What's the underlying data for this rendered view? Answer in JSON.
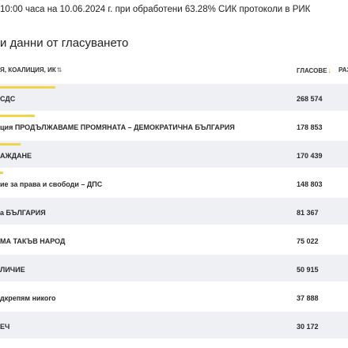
{
  "status_line": "10:00 часа на 10.06.2024 г. при обработени 63.28% СИК протоколи в РИК",
  "section_title": "и данни от гласуването",
  "table": {
    "headers": {
      "name": "я, коалиция, ИК",
      "name_sort_icon": "sort-arrows-icon",
      "votes": "ГЛАСОВЕ",
      "votes_sort_icon": "sort-down-arrow-icon",
      "third": "РАЗ"
    },
    "bar_color": "#f2d44a",
    "rows": [
      {
        "name": "СДС",
        "votes": "268 574",
        "share": 0.16
      },
      {
        "name": "ция ПРОДЪЛЖАВАМЕ ПРОМЯНАТА – ДЕМОКРАТИЧНА БЪЛГАРИЯ",
        "votes": "178 853",
        "share": 0.1
      },
      {
        "name": "АЖДАНЕ",
        "votes": "170 439",
        "share": 0.06
      },
      {
        "name": "ие за права и свободи – ДПС",
        "votes": "148 803",
        "share": 0.01
      },
      {
        "name": "а БЪЛГАРИЯ",
        "votes": "81 367",
        "share": 0.0
      },
      {
        "name": "МА ТАКЪВ НАРОД",
        "votes": "75 022",
        "share": 0.0
      },
      {
        "name": "ЛИЧИЕ",
        "votes": "50 915",
        "share": 0.0
      },
      {
        "name": "дкрепям никого",
        "votes": "37 888",
        "share": 0.0
      },
      {
        "name": "ЕЧ",
        "votes": "30 172",
        "share": 0.0
      }
    ]
  }
}
